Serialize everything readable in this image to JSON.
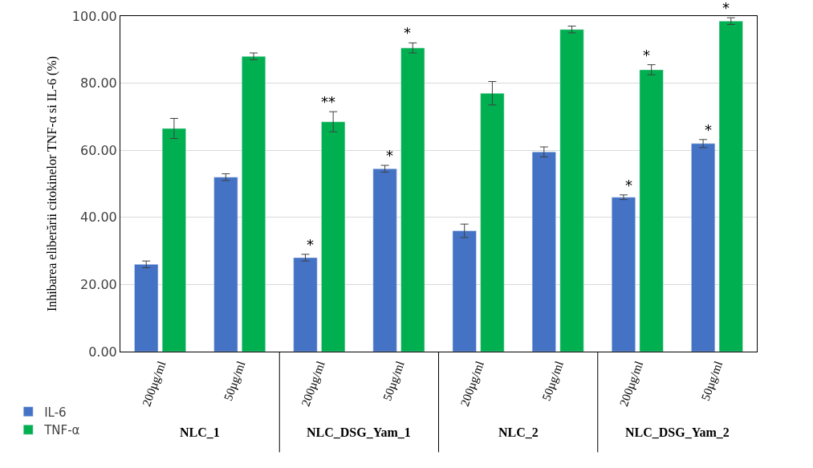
{
  "chart_data": {
    "type": "bar",
    "ylabel": "Inhibarea eliberării citokinelor TNF-α si IL-6 (%)",
    "categories": [
      "200µg/ml",
      "50µg/ml",
      "200µg/ml",
      "50µg/ml",
      "200µg/ml",
      "50µg/ml",
      "200µg/ml",
      "50µg/ml"
    ],
    "annotations": [
      "NLC_1",
      "NLC_DSG_Yam_1",
      "NLC_2",
      "NLC_DSG_Yam_2"
    ],
    "series": [
      {
        "name": "IL-6",
        "color": "#4472c4",
        "values": [
          26,
          52,
          28,
          54.5,
          36,
          59.5,
          46,
          62
        ],
        "errors": [
          1,
          1,
          1,
          1,
          2,
          1.5,
          0.7,
          1.2
        ],
        "value_labels": [
          null,
          null,
          "*",
          "*",
          null,
          null,
          "*",
          "*"
        ]
      },
      {
        "name": "TNF-α",
        "color": "#00b050",
        "values": [
          66.5,
          88,
          68.5,
          90.5,
          77,
          96,
          84,
          98.5
        ],
        "errors": [
          3,
          1,
          3,
          1.5,
          3.5,
          1,
          1.5,
          1
        ],
        "value_labels": [
          null,
          null,
          "**",
          "*",
          null,
          null,
          "*",
          "*"
        ]
      }
    ],
    "ylim": [
      0,
      100
    ],
    "yticks": [
      {
        "value": 0,
        "label": "0.00"
      },
      {
        "value": 20,
        "label": "20.00"
      },
      {
        "value": 40,
        "label": "40.00"
      },
      {
        "value": 60,
        "label": "60.00"
      },
      {
        "value": 80,
        "label": "80.00"
      },
      {
        "value": 100,
        "label": "100.00"
      }
    ],
    "grid": "y",
    "legend": "bottom left"
  }
}
